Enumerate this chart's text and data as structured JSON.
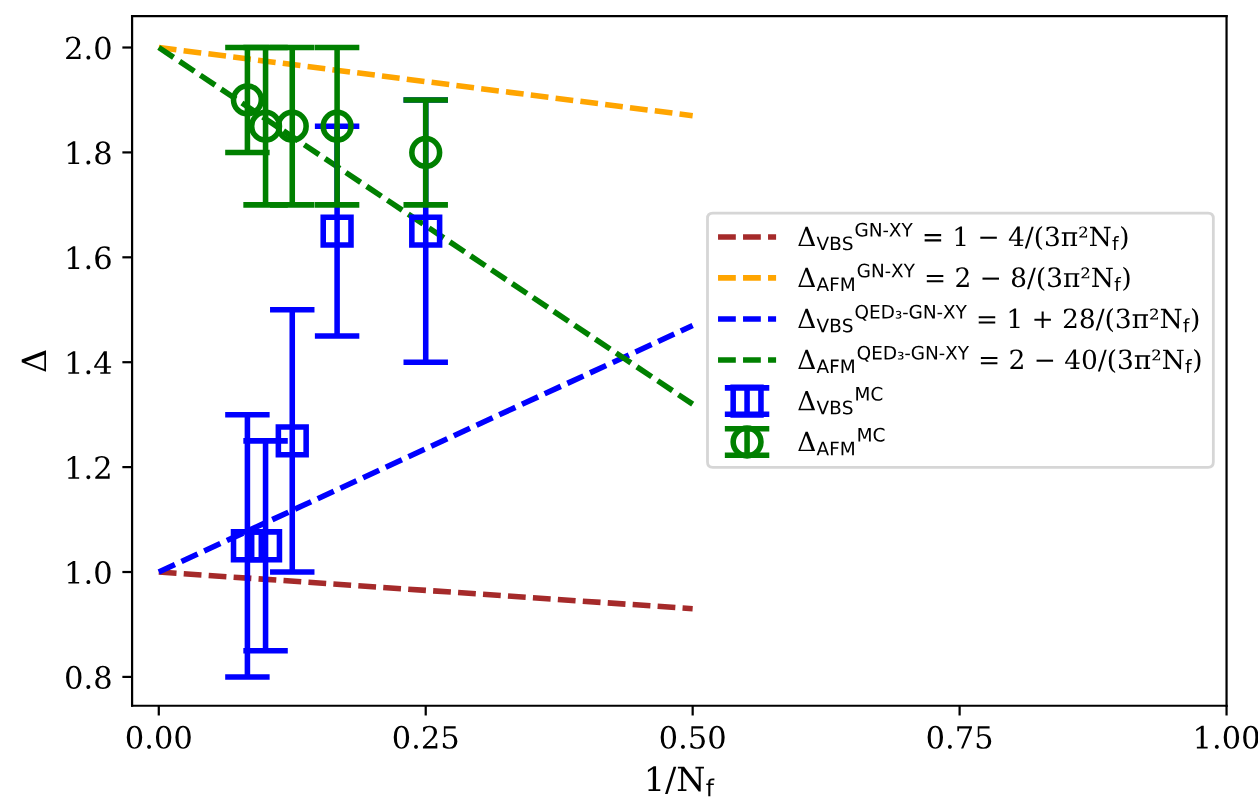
{
  "chart_data": {
    "type": "line",
    "xlabel": "1/N$_{f}$",
    "ylabel": "Δ",
    "xlim": [
      -0.025,
      1.0
    ],
    "xticks": [
      {
        "value": 0,
        "label": "0.00"
      },
      {
        "value": 0.25,
        "label": "0.25"
      },
      {
        "value": 0.5,
        "label": "0.50"
      },
      {
        "value": 0.75,
        "label": "0.75"
      },
      {
        "value": 1,
        "label": "1.00"
      }
    ],
    "ylim": [
      0.745,
      2.06
    ],
    "yticks": [
      {
        "value": 0.8,
        "label": "0.8"
      },
      {
        "value": 1.0,
        "label": "1.0"
      },
      {
        "value": 1.2,
        "label": "1.2"
      },
      {
        "value": 1.4,
        "label": "1.4"
      },
      {
        "value": 1.6,
        "label": "1.6"
      },
      {
        "value": 1.8,
        "label": "1.8"
      },
      {
        "value": 2.0,
        "label": "2.0"
      }
    ],
    "grid": false,
    "legend": "right",
    "line_style": "dashed",
    "series": [
      {
        "name": "Δ$_{VBS}$$^{GN-XY}$ = 1 − 4/(3π²N$_{f}$)",
        "color": "#a52a2a",
        "x": [
          0,
          0.5
        ],
        "values": [
          1.0,
          0.93
        ]
      },
      {
        "name": "Δ$_{AFM}$$^{GN-XY}$ = 2 − 8/(3π²N$_{f}$)",
        "color": "#ffa500",
        "x": [
          0,
          0.5
        ],
        "values": [
          2.0,
          1.87
        ]
      },
      {
        "name": "Δ$_{VBS}$$^{QED₃-GN-XY}$ = 1 + 28/(3π²N$_{f}$)",
        "color": "#0000ff",
        "x": [
          0,
          0.5
        ],
        "values": [
          1.0,
          1.47
        ]
      },
      {
        "name": "Δ$_{AFM}$$^{QED₃-GN-XY}$ = 2 − 40/(3π²N$_{f}$)",
        "color": "#008000",
        "x": [
          0,
          0.5
        ],
        "values": [
          2.0,
          1.32
        ]
      },
      {
        "name": "Δ$_{VBS}$$^{MC}$",
        "type": "scatter",
        "marker": "square",
        "color": "#0000ff",
        "x": [
          0.083,
          0.1,
          0.125,
          0.167,
          0.25
        ],
        "values": [
          1.05,
          1.05,
          1.25,
          1.65,
          1.65
        ],
        "errors": [
          [
            0.8,
            1.3
          ],
          [
            0.85,
            1.25
          ],
          [
            1.0,
            1.5
          ],
          [
            1.45,
            1.85
          ],
          [
            1.4,
            1.9
          ]
        ]
      },
      {
        "name": "Δ$_{AFM}$$^{MC}$",
        "type": "scatter",
        "marker": "circle",
        "color": "#008000",
        "x": [
          0.083,
          0.1,
          0.125,
          0.167,
          0.25
        ],
        "values": [
          1.9,
          1.85,
          1.85,
          1.85,
          1.8
        ],
        "errors": [
          [
            1.8,
            2.0
          ],
          [
            1.7,
            2.0
          ],
          [
            1.7,
            2.0
          ],
          [
            1.7,
            2.0
          ],
          [
            1.7,
            1.9
          ]
        ]
      }
    ]
  }
}
